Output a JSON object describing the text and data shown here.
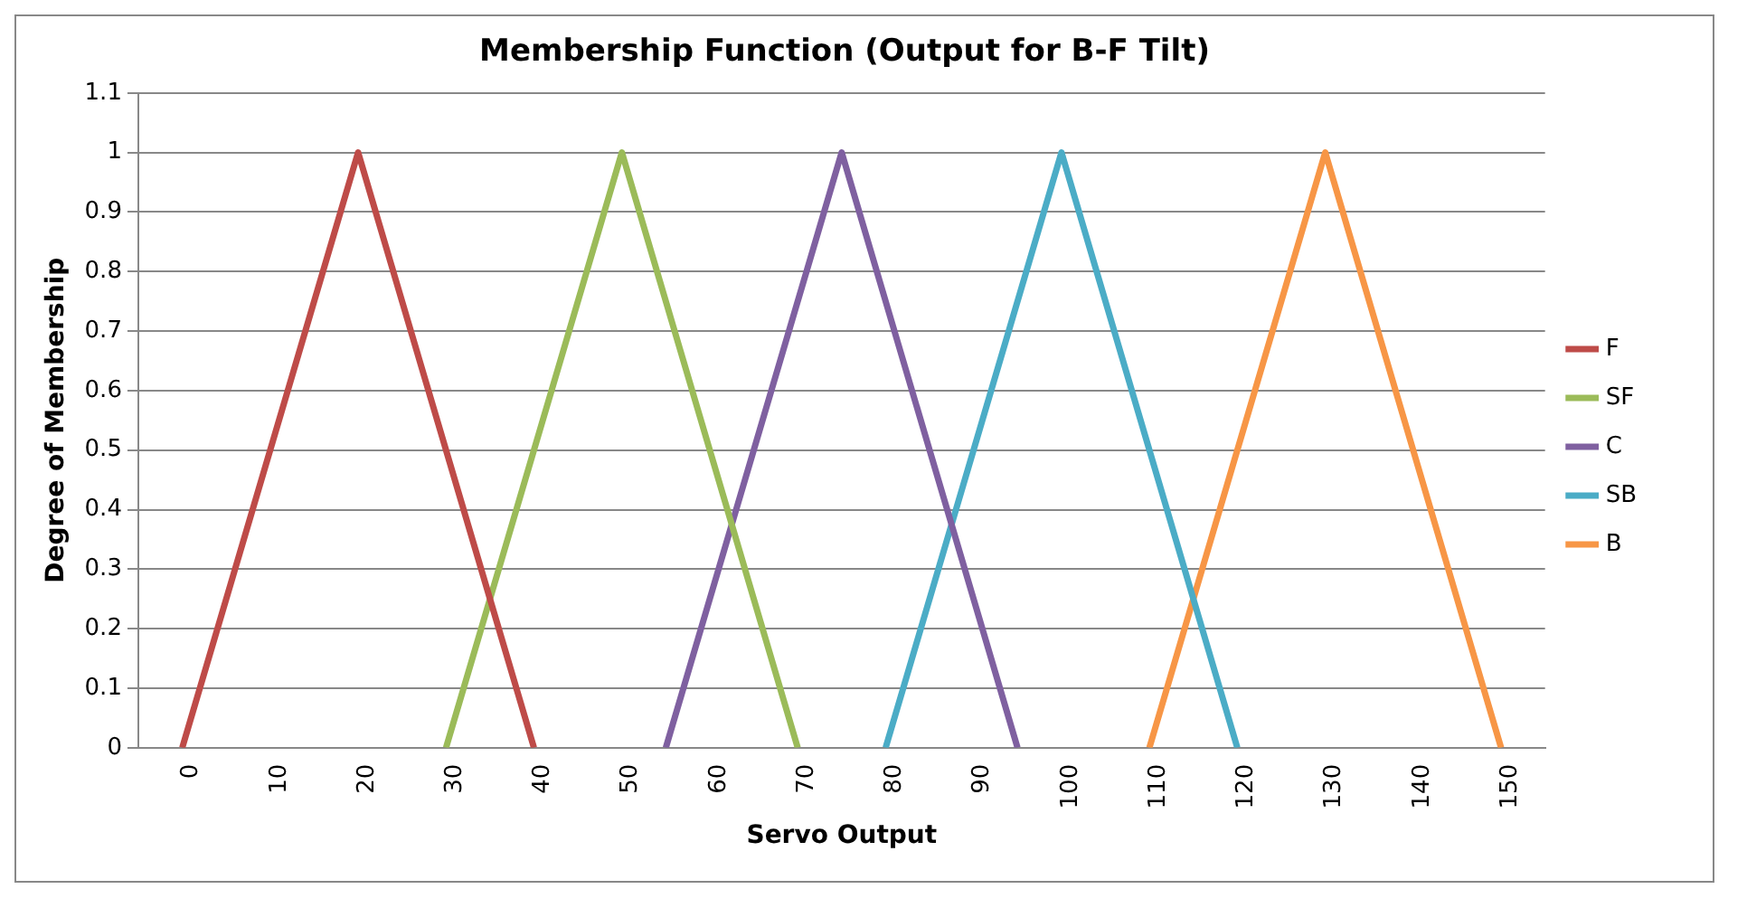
{
  "chart_data": {
    "type": "line",
    "title": "Membership Function (Output for B-F Tilt)",
    "xlabel": "Servo Output",
    "ylabel": "Degree of Membership",
    "xlim": [
      -5,
      155
    ],
    "xticks": [
      0,
      10,
      20,
      30,
      40,
      50,
      60,
      70,
      80,
      90,
      100,
      110,
      120,
      130,
      140,
      150
    ],
    "ylim": [
      0,
      1.1
    ],
    "yticks": [
      0,
      0.1,
      0.2,
      0.3,
      0.4,
      0.5,
      0.6,
      0.7,
      0.8,
      0.9,
      1,
      1.1
    ],
    "grid": "y",
    "legend": "right",
    "marker": "none",
    "line_style": "solid",
    "series": [
      {
        "name": "F",
        "color": "#be4b48",
        "x": [
          0,
          20,
          40
        ],
        "values": [
          0,
          1,
          0
        ]
      },
      {
        "name": "SF",
        "color": "#9bbb59",
        "x": [
          30,
          50,
          70
        ],
        "values": [
          0,
          1,
          0
        ]
      },
      {
        "name": "C",
        "color": "#7f60a0",
        "x": [
          55,
          75,
          95
        ],
        "values": [
          0,
          1,
          0
        ]
      },
      {
        "name": "SB",
        "color": "#4bacc6",
        "x": [
          80,
          100,
          120
        ],
        "values": [
          0,
          1,
          0
        ]
      },
      {
        "name": "B",
        "color": "#f79646",
        "x": [
          110,
          130,
          150
        ],
        "values": [
          0,
          1,
          0
        ]
      }
    ]
  }
}
